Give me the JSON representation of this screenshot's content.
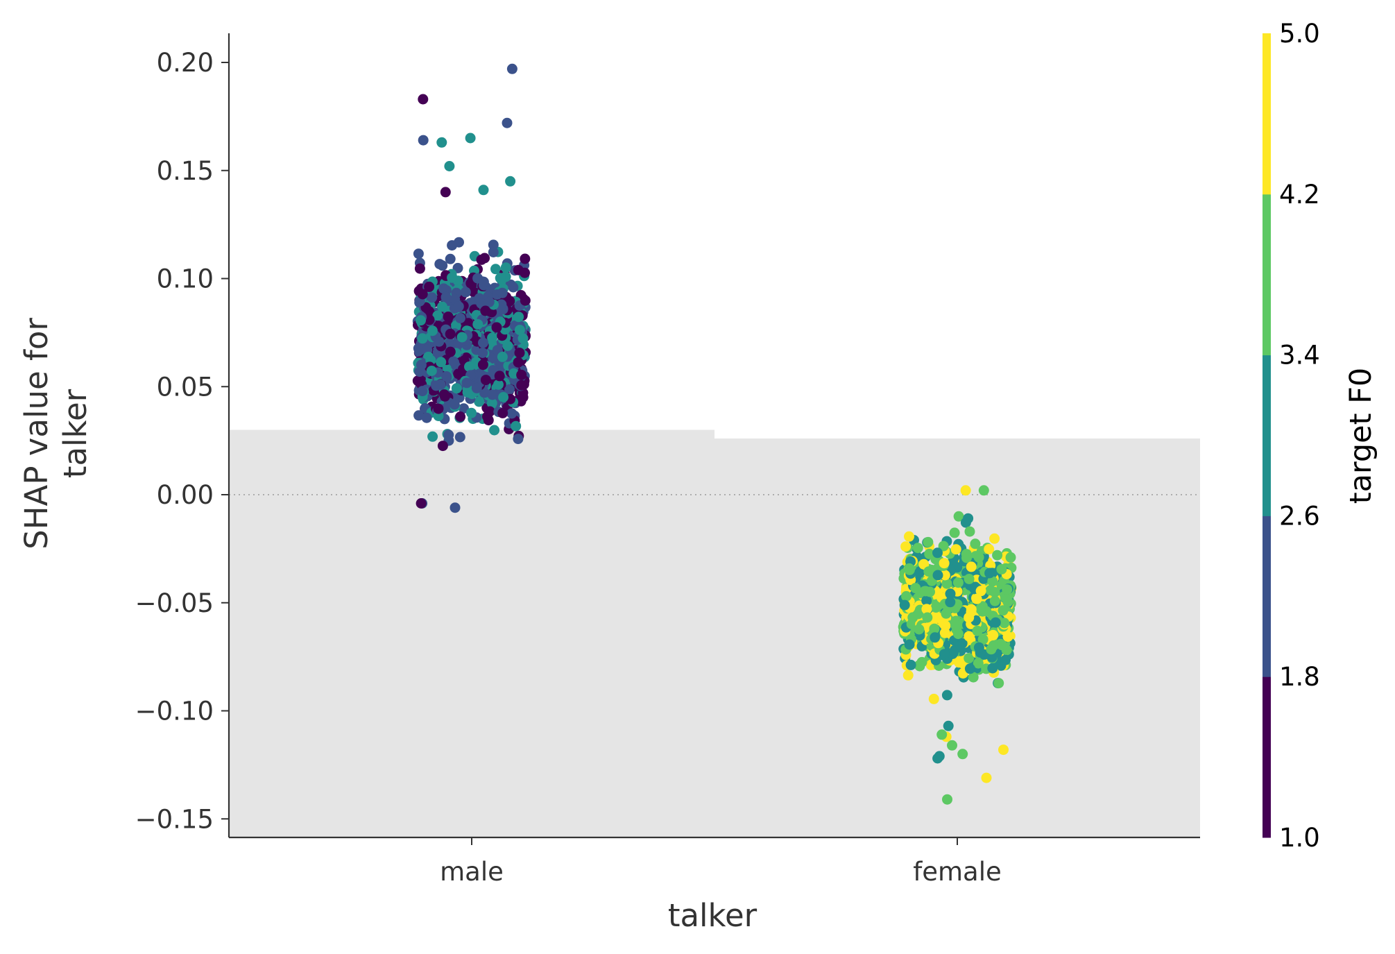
{
  "chart_data": {
    "type": "scatter",
    "subtype": "shap-dependence-strip",
    "categories": [
      "male",
      "female"
    ],
    "xlabel": "talker",
    "ylabel_lines": [
      "SHAP value for",
      "talker"
    ],
    "ylim": [
      -0.157,
      0.213
    ],
    "yticks": [
      {
        "value": 0.2,
        "label": "0.20"
      },
      {
        "value": 0.15,
        "label": "0.15"
      },
      {
        "value": 0.1,
        "label": "0.10"
      },
      {
        "value": 0.05,
        "label": "0.05"
      },
      {
        "value": 0.0,
        "label": "0.00"
      },
      {
        "value": -0.05,
        "label": "−0.05"
      },
      {
        "value": -0.1,
        "label": "−0.10"
      },
      {
        "value": -0.15,
        "label": "−0.15"
      }
    ],
    "zero_line": true,
    "background_histogram": {
      "color": "#e5e5e5",
      "bars": [
        {
          "category": "male",
          "top": 0.03
        },
        {
          "category": "female",
          "top": 0.026
        }
      ]
    },
    "colorbar": {
      "title": "target F0",
      "range": [
        1.0,
        5.0
      ],
      "ticks": [
        "1.0",
        "1.8",
        "2.6",
        "3.4",
        "4.2",
        "5.0"
      ],
      "colors": [
        "#440154",
        "#3b528b",
        "#21908d",
        "#5dc863",
        "#fde725"
      ]
    },
    "series": [
      {
        "category": "male",
        "summary": {
          "count_approx": 1000,
          "y_min": -0.007,
          "y_max": 0.197,
          "bulk_range": [
            0.015,
            0.125
          ]
        },
        "outliers": [
          {
            "y": 0.197,
            "color_value": 2.0
          },
          {
            "y": 0.183,
            "color_value": 1.2
          },
          {
            "y": 0.172,
            "color_value": 2.0
          },
          {
            "y": 0.165,
            "color_value": 3.0
          },
          {
            "y": 0.164,
            "color_value": 2.0
          },
          {
            "y": 0.163,
            "color_value": 3.0
          },
          {
            "y": 0.152,
            "color_value": 3.0
          },
          {
            "y": 0.145,
            "color_value": 3.0
          },
          {
            "y": 0.141,
            "color_value": 3.0
          },
          {
            "y": 0.14,
            "color_value": 1.2
          },
          {
            "y": -0.004,
            "color_value": 2.0
          },
          {
            "y": -0.006,
            "color_value": 2.0
          },
          {
            "y": -0.004,
            "color_value": 1.2
          }
        ],
        "color_mix": [
          {
            "color_value": 1.4,
            "weight": 0.3
          },
          {
            "color_value": 2.2,
            "weight": 0.45
          },
          {
            "color_value": 3.0,
            "weight": 0.25
          }
        ]
      },
      {
        "category": "female",
        "summary": {
          "count_approx": 1000,
          "y_min": -0.141,
          "y_max": 0.002,
          "bulk_range": [
            -0.095,
            -0.008
          ]
        },
        "outliers": [
          {
            "y": 0.002,
            "color_value": 3.8
          },
          {
            "y": 0.002,
            "color_value": 4.6
          },
          {
            "y": -0.141,
            "color_value": 3.8
          },
          {
            "y": -0.131,
            "color_value": 4.6
          },
          {
            "y": -0.122,
            "color_value": 3.0
          },
          {
            "y": -0.121,
            "color_value": 3.0
          },
          {
            "y": -0.12,
            "color_value": 3.8
          },
          {
            "y": -0.118,
            "color_value": 4.6
          },
          {
            "y": -0.116,
            "color_value": 3.8
          },
          {
            "y": -0.112,
            "color_value": 4.6
          },
          {
            "y": -0.111,
            "color_value": 3.8
          },
          {
            "y": -0.107,
            "color_value": 3.0
          }
        ],
        "color_mix": [
          {
            "color_value": 3.0,
            "weight": 0.33
          },
          {
            "color_value": 3.8,
            "weight": 0.37
          },
          {
            "color_value": 4.6,
            "weight": 0.3
          }
        ]
      }
    ]
  }
}
